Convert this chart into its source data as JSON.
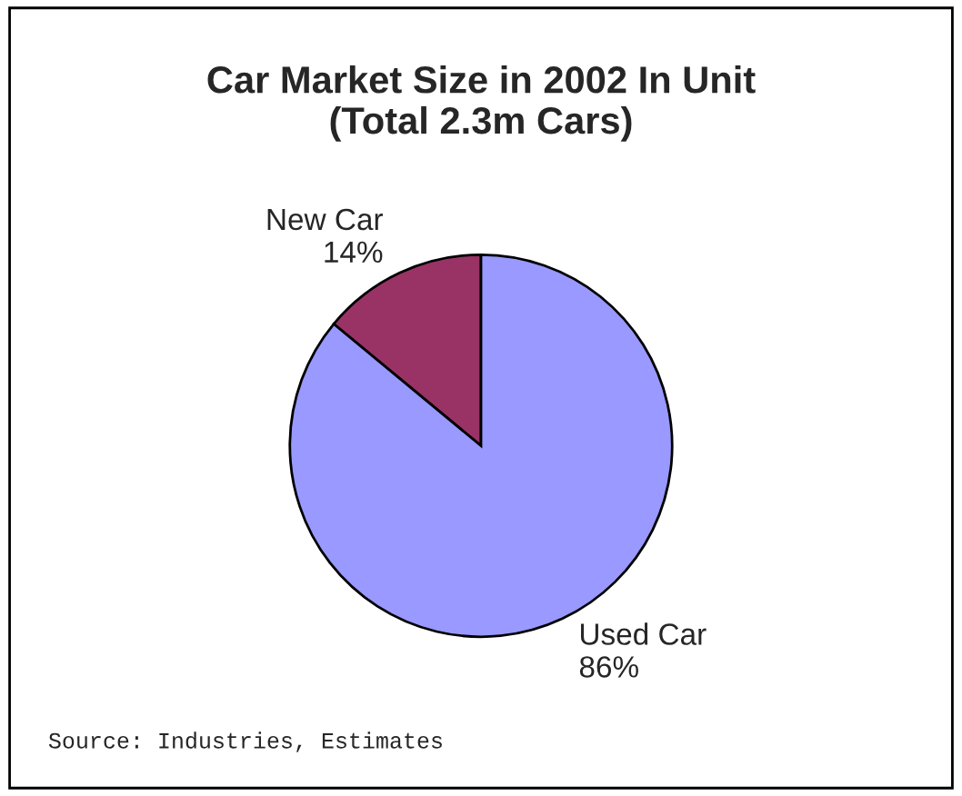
{
  "chart_data": {
    "type": "pie",
    "title": "Car Market Size in 2002 In Unit\n(Total 2.3m Cars)",
    "categories": [
      "New Car",
      "Used Car"
    ],
    "values": [
      14,
      86
    ],
    "colors": [
      "#993366",
      "#9999ff"
    ],
    "value_labels": [
      "14%",
      "86%"
    ],
    "annotations": [
      "Source: Industries, Estimates"
    ]
  }
}
